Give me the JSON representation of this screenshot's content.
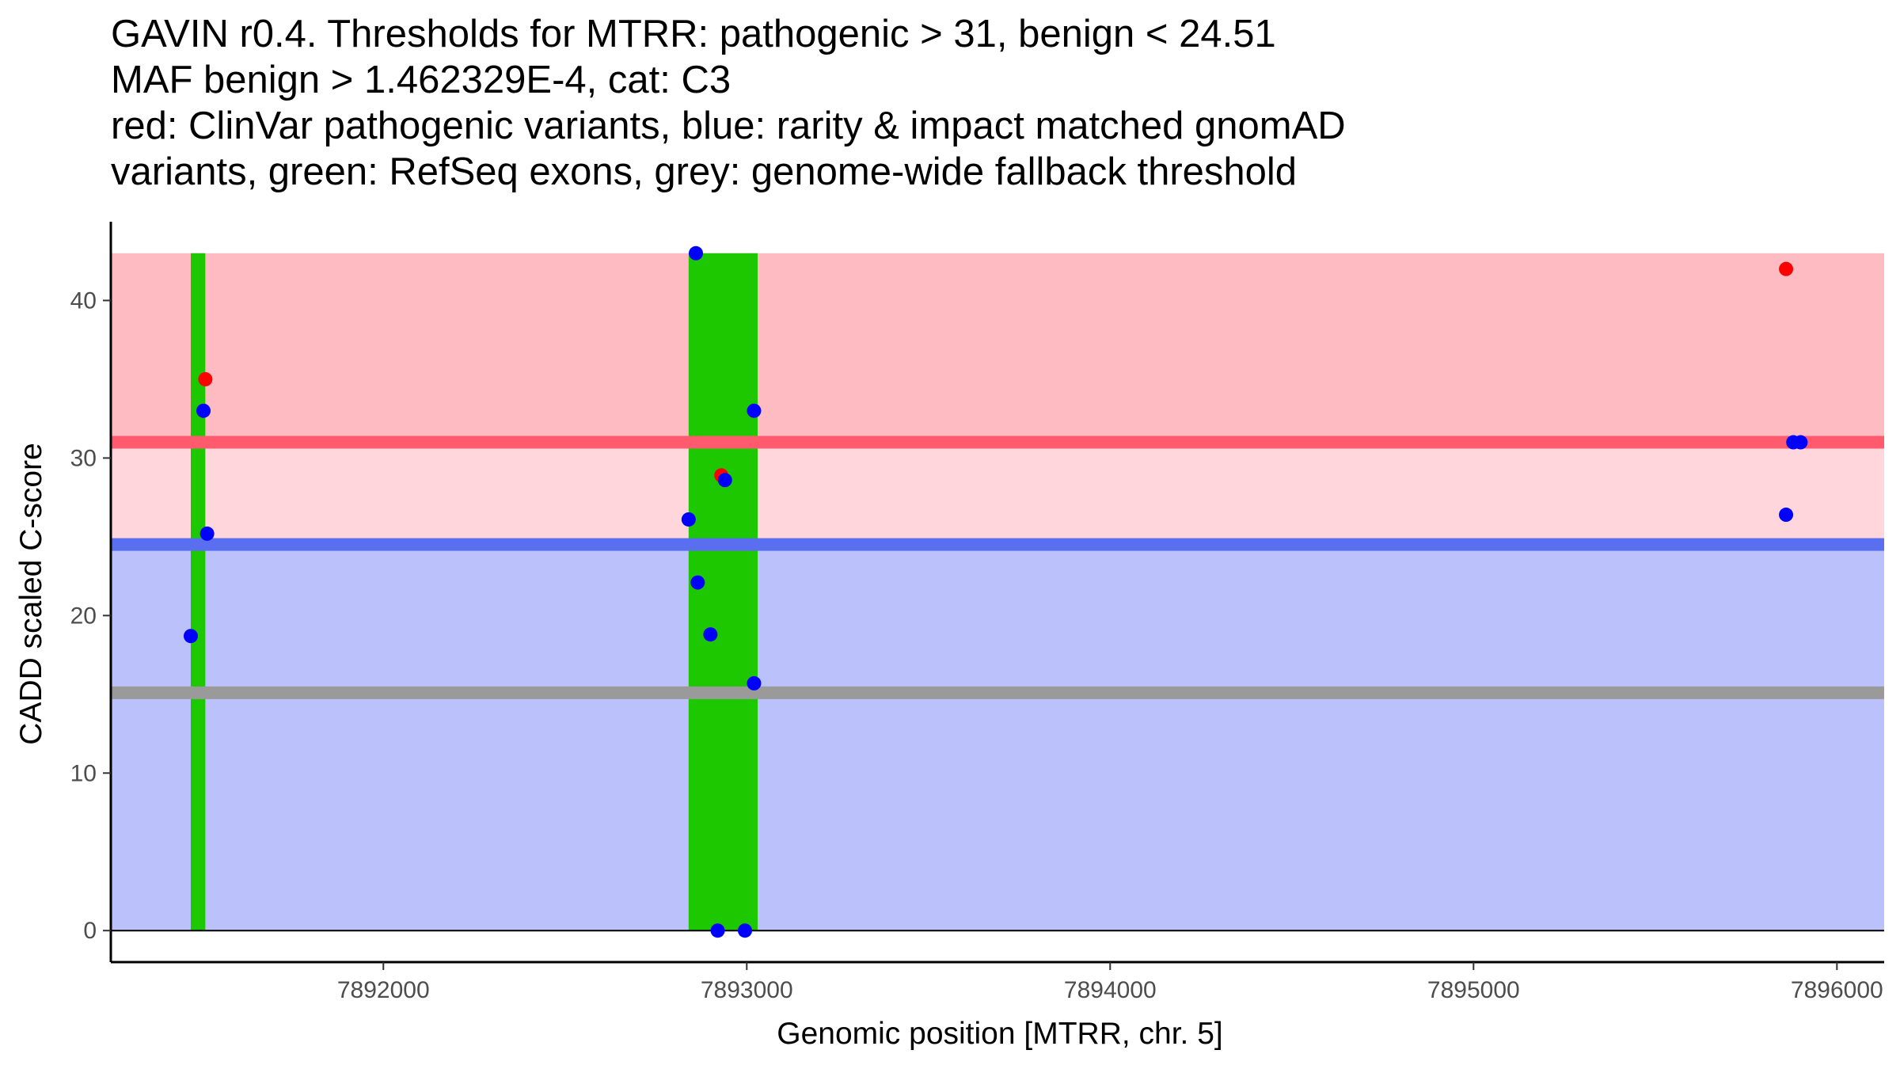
{
  "chart_data": {
    "type": "scatter",
    "title_lines": [
      "GAVIN r0.4. Thresholds for MTRR: pathogenic > 31, benign < 24.51",
      "MAF benign > 1.462329E-4, cat: C3",
      "red: ClinVar pathogenic variants, blue: rarity & impact matched gnomAD",
      "variants, green: RefSeq exons, grey: genome-wide fallback threshold"
    ],
    "xlabel": "Genomic position [MTRR, chr. 5]",
    "ylabel": "CADD scaled C-score",
    "xlim": [
      7891250,
      7896130
    ],
    "ylim": [
      -2,
      45
    ],
    "x_ticks": [
      7892000,
      7893000,
      7894000,
      7895000,
      7896000
    ],
    "x_tick_labels": [
      "7892000",
      "7893000",
      "7894000",
      "7895000",
      "7896000"
    ],
    "y_ticks": [
      0,
      10,
      20,
      30,
      40
    ],
    "y_tick_labels": [
      "0",
      "10",
      "20",
      "30",
      "40"
    ],
    "grid": false,
    "bands": [
      {
        "name": "pathogenic range",
        "y0": 31,
        "y1": 43,
        "color": "#ffbbc2"
      },
      {
        "name": "intermediate range",
        "y0": 24.51,
        "y1": 31,
        "color": "#ffd6dc"
      },
      {
        "name": "benign range",
        "y0": 0,
        "y1": 24.51,
        "color": "#bbc1fb"
      }
    ],
    "threshold_lines": [
      {
        "name": "pathogenic threshold",
        "y": 31,
        "color": "#ff5a6d"
      },
      {
        "name": "benign threshold",
        "y": 24.51,
        "color": "#5a6ef0"
      },
      {
        "name": "genome-wide fallback threshold",
        "y": 15.1,
        "color": "#9a9a9a"
      }
    ],
    "exons": [
      {
        "x0": 7891470,
        "x1": 7891510,
        "y0": 0,
        "y1": 43,
        "color": "#1dc800"
      },
      {
        "x0": 7892840,
        "x1": 7893030,
        "y0": 0,
        "y1": 43,
        "color": "#1dc800"
      }
    ],
    "series": [
      {
        "name": "ClinVar pathogenic variants",
        "color": "#ff0000",
        "points": [
          {
            "x": 7891510,
            "y": 35
          },
          {
            "x": 7892930,
            "y": 28.9
          },
          {
            "x": 7895860,
            "y": 42
          }
        ]
      },
      {
        "name": "rarity & impact matched gnomAD variants",
        "color": "#0000ff",
        "points": [
          {
            "x": 7891470,
            "y": 18.7
          },
          {
            "x": 7891505,
            "y": 33
          },
          {
            "x": 7891515,
            "y": 25.2
          },
          {
            "x": 7892840,
            "y": 26.1
          },
          {
            "x": 7892860,
            "y": 43
          },
          {
            "x": 7892865,
            "y": 22.1
          },
          {
            "x": 7892900,
            "y": 18.8
          },
          {
            "x": 7892920,
            "y": 0
          },
          {
            "x": 7892940,
            "y": 28.6
          },
          {
            "x": 7892995,
            "y": 0
          },
          {
            "x": 7893020,
            "y": 33
          },
          {
            "x": 7893020,
            "y": 15.7
          },
          {
            "x": 7895860,
            "y": 26.4
          },
          {
            "x": 7895880,
            "y": 31
          },
          {
            "x": 7895900,
            "y": 31
          }
        ]
      }
    ]
  }
}
